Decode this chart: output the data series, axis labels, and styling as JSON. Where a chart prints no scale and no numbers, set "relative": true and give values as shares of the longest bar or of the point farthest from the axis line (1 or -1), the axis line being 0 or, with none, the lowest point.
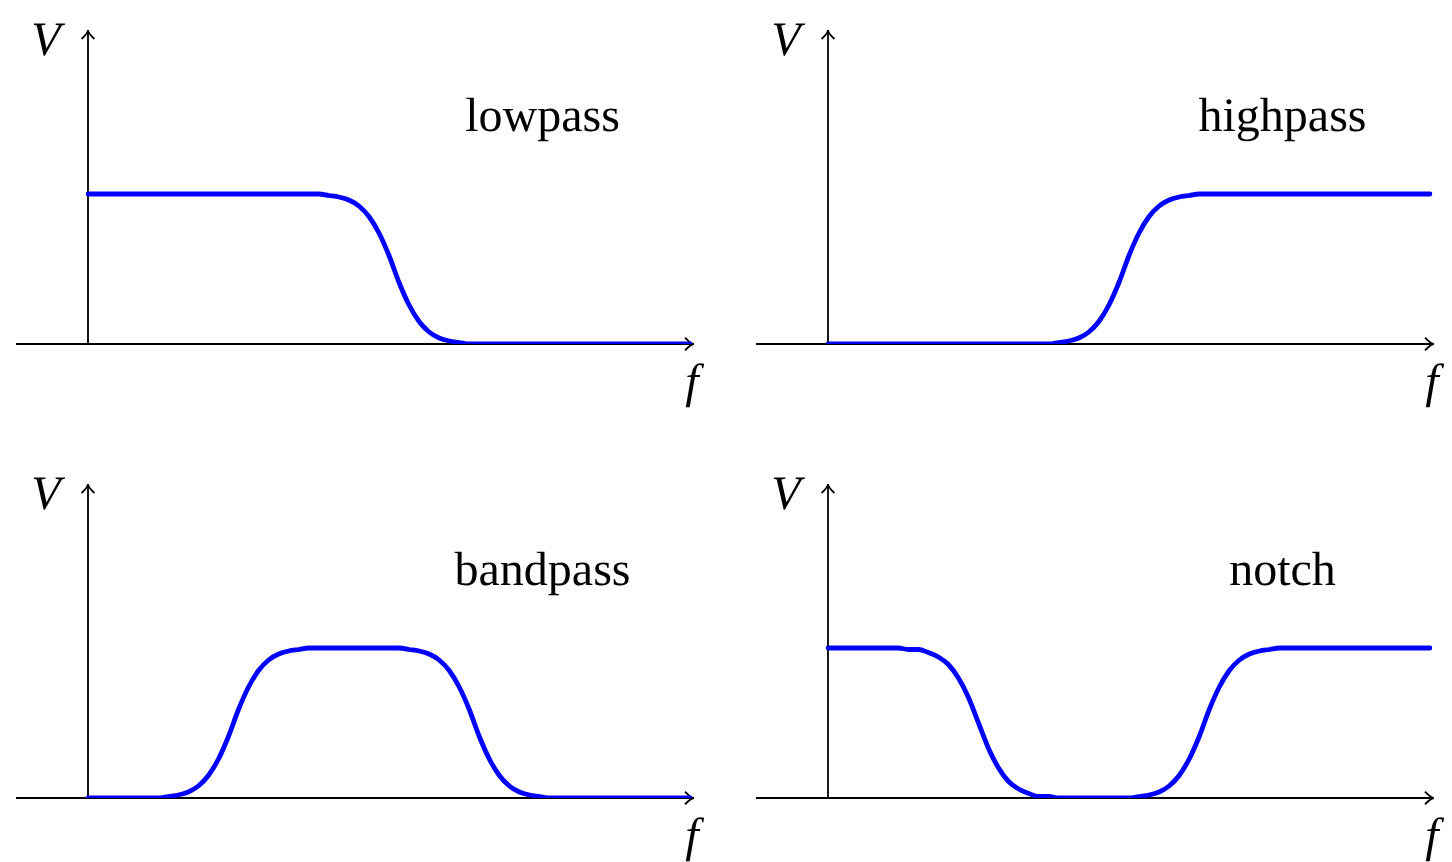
{
  "chart_data": [
    {
      "type": "line",
      "title": "lowpass",
      "xlabel": "f",
      "ylabel": "V",
      "relative": true,
      "line_style": "solid",
      "color": "#0000ff",
      "categories": [
        null,
        null,
        null,
        null,
        null,
        null,
        null,
        null,
        null,
        null,
        null,
        null,
        null,
        null,
        null,
        null,
        null,
        null,
        null,
        null,
        null,
        null,
        null,
        null,
        null,
        null,
        null,
        null,
        null,
        null,
        null,
        null,
        null,
        null,
        null,
        null,
        null,
        null,
        null,
        null,
        null,
        null,
        null,
        null,
        null,
        null,
        null,
        null,
        null,
        null,
        null,
        null,
        null,
        null,
        null,
        null,
        null,
        null,
        null,
        null,
        null
      ],
      "values": [
        1,
        1,
        1,
        1,
        1,
        1,
        1,
        1,
        1,
        1,
        1,
        1,
        1,
        1,
        1,
        1,
        1,
        1,
        1,
        1,
        1,
        1,
        1,
        1,
        0.99,
        0.98,
        0.96,
        0.92,
        0.85,
        0.74,
        0.59,
        0.41,
        0.26,
        0.15,
        0.08,
        0.04,
        0.02,
        0.01,
        0,
        0,
        0,
        0,
        0,
        0,
        0,
        0,
        0,
        0,
        0,
        0,
        0,
        0,
        0,
        0,
        0,
        0,
        0,
        0,
        0,
        0,
        0
      ]
    },
    {
      "type": "line",
      "title": "highpass",
      "xlabel": "f",
      "ylabel": "V",
      "relative": true,
      "line_style": "solid",
      "color": "#0000ff",
      "categories": [
        null,
        null,
        null,
        null,
        null,
        null,
        null,
        null,
        null,
        null,
        null,
        null,
        null,
        null,
        null,
        null,
        null,
        null,
        null,
        null,
        null,
        null,
        null,
        null,
        null,
        null,
        null,
        null,
        null,
        null,
        null,
        null,
        null,
        null,
        null,
        null,
        null,
        null,
        null,
        null,
        null,
        null,
        null,
        null,
        null,
        null,
        null,
        null,
        null,
        null,
        null,
        null,
        null,
        null,
        null,
        null,
        null,
        null,
        null,
        null,
        null
      ],
      "values": [
        0,
        0,
        0,
        0,
        0,
        0,
        0,
        0,
        0,
        0,
        0,
        0,
        0,
        0,
        0,
        0,
        0,
        0,
        0,
        0,
        0,
        0,
        0,
        0.01,
        0.02,
        0.04,
        0.08,
        0.15,
        0.26,
        0.41,
        0.59,
        0.74,
        0.85,
        0.92,
        0.96,
        0.98,
        0.99,
        1,
        1,
        1,
        1,
        1,
        1,
        1,
        1,
        1,
        1,
        1,
        1,
        1,
        1,
        1,
        1,
        1,
        1,
        1,
        1,
        1,
        1,
        1,
        1
      ]
    },
    {
      "type": "line",
      "title": "bandpass",
      "xlabel": "f",
      "ylabel": "V",
      "relative": true,
      "line_style": "solid",
      "color": "#0000ff",
      "categories": [
        null,
        null,
        null,
        null,
        null,
        null,
        null,
        null,
        null,
        null,
        null,
        null,
        null,
        null,
        null,
        null,
        null,
        null,
        null,
        null,
        null,
        null,
        null,
        null,
        null,
        null,
        null,
        null,
        null,
        null,
        null,
        null,
        null,
        null,
        null,
        null,
        null,
        null,
        null,
        null,
        null,
        null,
        null,
        null,
        null,
        null,
        null,
        null,
        null,
        null,
        null,
        null,
        null,
        null,
        null,
        null,
        null,
        null,
        null,
        null,
        null
      ],
      "values": [
        0,
        0,
        0,
        0,
        0,
        0,
        0,
        0,
        0.01,
        0.02,
        0.04,
        0.08,
        0.15,
        0.26,
        0.41,
        0.59,
        0.74,
        0.85,
        0.92,
        0.96,
        0.98,
        0.99,
        1,
        1,
        1,
        1,
        1,
        1,
        1,
        1,
        1,
        1,
        0.99,
        0.98,
        0.96,
        0.92,
        0.85,
        0.74,
        0.59,
        0.41,
        0.26,
        0.15,
        0.08,
        0.04,
        0.02,
        0.01,
        0,
        0,
        0,
        0,
        0,
        0,
        0,
        0,
        0,
        0,
        0,
        0,
        0,
        0,
        0
      ]
    },
    {
      "type": "line",
      "title": "notch",
      "xlabel": "f",
      "ylabel": "V",
      "relative": true,
      "line_style": "solid",
      "color": "#0000ff",
      "categories": [
        null,
        null,
        null,
        null,
        null,
        null,
        null,
        null,
        null,
        null,
        null,
        null,
        null,
        null,
        null,
        null,
        null,
        null,
        null,
        null,
        null,
        null,
        null,
        null,
        null,
        null,
        null,
        null,
        null,
        null,
        null,
        null,
        null,
        null,
        null,
        null,
        null,
        null,
        null,
        null,
        null,
        null,
        null,
        null,
        null,
        null,
        null,
        null,
        null,
        null,
        null,
        null,
        null,
        null,
        null,
        null,
        null,
        null,
        null,
        null,
        null
      ],
      "values": [
        1,
        1,
        1,
        1,
        1,
        1,
        1,
        1,
        0.99,
        0.99,
        0.97,
        0.94,
        0.89,
        0.8,
        0.67,
        0.5,
        0.33,
        0.2,
        0.11,
        0.06,
        0.03,
        0.01,
        0.01,
        0,
        0,
        0,
        0,
        0,
        0,
        0,
        0,
        0.01,
        0.02,
        0.04,
        0.08,
        0.15,
        0.26,
        0.41,
        0.59,
        0.74,
        0.85,
        0.92,
        0.96,
        0.98,
        0.99,
        1,
        1,
        1,
        1,
        1,
        1,
        1,
        1,
        1,
        1,
        1,
        1,
        1,
        1,
        1,
        1
      ]
    }
  ]
}
